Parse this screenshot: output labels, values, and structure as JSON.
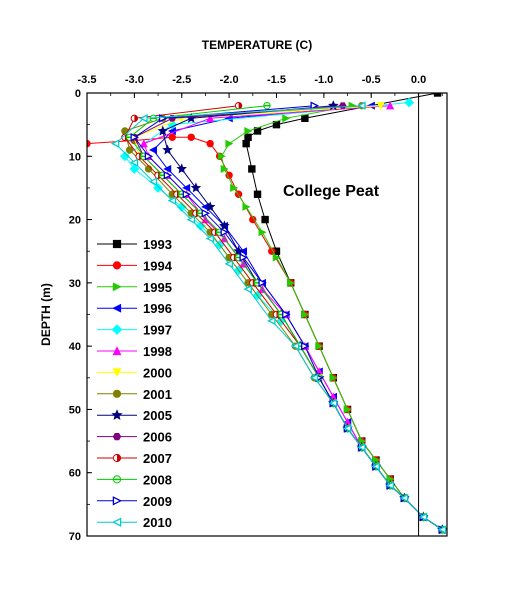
{
  "chart_data": {
    "type": "line",
    "xlabel": "TEMPERATURE (C)",
    "ylabel": "DEPTH (m)",
    "annotation": "College Peat",
    "xlim": [
      -3.5,
      0.3
    ],
    "ylim": [
      0,
      70
    ],
    "x_axis_position": "top",
    "y_axis_inverted": true,
    "grid": false,
    "legend_position": "left-center",
    "reference_line_x": 0.0,
    "x_ticks": [
      "-3.5",
      "-3.0",
      "-2.5",
      "-2.0",
      "-1.5",
      "-1.0",
      "-0.5",
      "0.0"
    ],
    "x_tick_values": [
      -3.5,
      -3.0,
      -2.5,
      -2.0,
      -1.5,
      -1.0,
      -0.5,
      0.0
    ],
    "y_ticks": [
      "0",
      "10",
      "20",
      "30",
      "40",
      "50",
      "60",
      "70"
    ],
    "y_tick_values": [
      0,
      10,
      20,
      30,
      40,
      50,
      60,
      70
    ],
    "series": [
      {
        "name": "1993",
        "color": "#000000",
        "marker": "square",
        "x": [
          0.2,
          -1.2,
          -1.5,
          -1.7,
          -1.8,
          -1.82,
          -1.76,
          -1.7,
          -1.62,
          -1.5,
          -1.35,
          -1.2,
          -1.05,
          -0.9,
          -0.75,
          -0.6,
          -0.45,
          -0.3,
          -0.15,
          0.05,
          0.25
        ],
        "y": [
          0,
          4,
          5,
          6,
          7,
          8,
          12,
          16,
          20,
          25,
          30,
          35,
          40,
          45,
          50,
          55,
          58,
          61,
          64,
          67,
          69
        ]
      },
      {
        "name": "1994",
        "color": "#ff0000",
        "marker": "circle",
        "x": [
          -3.5,
          -3.0,
          -2.6,
          -2.4,
          -2.2,
          -2.1,
          -2.0,
          -1.9,
          -1.75,
          -1.55,
          -1.35,
          -1.2,
          -1.05,
          -0.9,
          -0.75,
          -0.6,
          -0.45,
          -0.3,
          -0.15,
          0.05,
          0.25
        ],
        "y": [
          8,
          7.5,
          7,
          7,
          8,
          10,
          13,
          16,
          20,
          25,
          30,
          35,
          40,
          45,
          50,
          55,
          58,
          61,
          64,
          67,
          69
        ]
      },
      {
        "name": "1995",
        "color": "#22cc00",
        "marker": "triangle-right",
        "x": [
          -0.7,
          -1.4,
          -1.8,
          -2.0,
          -2.08,
          -2.05,
          -1.95,
          -1.82,
          -1.65,
          -1.5,
          -1.35,
          -1.2,
          -1.05,
          -0.9,
          -0.75,
          -0.6,
          -0.45,
          -0.3,
          -0.15,
          0.05,
          0.25
        ],
        "y": [
          2,
          4,
          6,
          8,
          10,
          12,
          15,
          18,
          22,
          26,
          30,
          35,
          40,
          45,
          50,
          55,
          58,
          61,
          64,
          67,
          69
        ]
      },
      {
        "name": "1996",
        "color": "#0000ff",
        "marker": "triangle-left",
        "x": [
          -0.5,
          -2.0,
          -2.6,
          -2.8,
          -2.65,
          -2.45,
          -2.25,
          -2.05,
          -1.85,
          -1.65,
          -1.4,
          -1.2,
          -1.05,
          -0.9,
          -0.75,
          -0.6,
          -0.45,
          -0.3,
          -0.15,
          0.05,
          0.25
        ],
        "y": [
          2,
          4,
          6,
          9,
          12,
          15,
          18,
          21,
          25,
          30,
          35,
          40,
          44,
          48,
          52,
          56,
          59,
          62,
          64,
          67,
          69
        ]
      },
      {
        "name": "1997",
        "color": "#00ffff",
        "marker": "diamond",
        "x": [
          -0.1,
          -2.6,
          -3.1,
          -3.0,
          -2.75,
          -2.5,
          -2.3,
          -2.1,
          -1.9,
          -1.7,
          -1.45,
          -1.25,
          -1.05,
          -0.9,
          -0.75,
          -0.6,
          -0.45,
          -0.3,
          -0.15,
          0.05,
          0.25
        ],
        "y": [
          1.5,
          5,
          10,
          12,
          15,
          18,
          21,
          24,
          28,
          32,
          36,
          40,
          45,
          49,
          53,
          56,
          59,
          62,
          64,
          67,
          69
        ]
      },
      {
        "name": "1998",
        "color": "#ff00ff",
        "marker": "triangle-up",
        "x": [
          -0.3,
          -2.2,
          -2.9,
          -2.85,
          -2.65,
          -2.45,
          -2.25,
          -2.05,
          -1.85,
          -1.65,
          -1.4,
          -1.2,
          -1.05,
          -0.9,
          -0.75,
          -0.6,
          -0.45,
          -0.3,
          -0.15,
          0.05,
          0.25
        ],
        "y": [
          2,
          4,
          8,
          10,
          13,
          16,
          20,
          23,
          27,
          31,
          35,
          40,
          44,
          48,
          52,
          56,
          59,
          62,
          64,
          67,
          69
        ]
      },
      {
        "name": "2000",
        "color": "#ffff00",
        "marker": "triangle-down",
        "x": [
          -0.4,
          -2.5,
          -3.0,
          -2.95,
          -2.75,
          -2.55,
          -2.35,
          -2.15,
          -1.95,
          -1.75,
          -1.5,
          -1.25,
          -1.05,
          -0.9,
          -0.75,
          -0.6,
          -0.45,
          -0.3,
          -0.15,
          0.05,
          0.25
        ],
        "y": [
          2,
          4,
          7,
          10,
          13,
          16,
          19,
          22,
          26,
          30,
          35,
          40,
          45,
          49,
          53,
          56,
          59,
          62,
          64,
          67,
          69
        ]
      },
      {
        "name": "2001",
        "color": "#808000",
        "marker": "circle",
        "x": [
          -0.6,
          -2.7,
          -3.1,
          -3.05,
          -2.85,
          -2.6,
          -2.4,
          -2.2,
          -2.0,
          -1.8,
          -1.55,
          -1.3,
          -1.1,
          -0.9,
          -0.75,
          -0.6,
          -0.45,
          -0.3,
          -0.15,
          0.05,
          0.25
        ],
        "y": [
          2,
          4,
          6,
          9,
          12,
          16,
          19,
          22,
          26,
          30,
          35,
          40,
          45,
          49,
          53,
          56,
          59,
          62,
          64,
          67,
          69
        ]
      },
      {
        "name": "2005",
        "color": "#000080",
        "marker": "star",
        "x": [
          -0.9,
          -2.4,
          -2.7,
          -2.65,
          -2.5,
          -2.35,
          -2.2,
          -2.05,
          -1.9,
          -1.7,
          -1.45,
          -1.25,
          -1.05,
          -0.9,
          -0.75,
          -0.6,
          -0.45,
          -0.3,
          -0.15,
          0.05,
          0.25
        ],
        "y": [
          2,
          4,
          6,
          9,
          12,
          15,
          18,
          21,
          25,
          30,
          35,
          40,
          45,
          49,
          53,
          56,
          59,
          62,
          64,
          67,
          69
        ]
      },
      {
        "name": "2006",
        "color": "#800080",
        "marker": "hexagon",
        "x": [
          -0.8,
          -2.6,
          -3.0,
          -2.9,
          -2.7,
          -2.5,
          -2.3,
          -2.1,
          -1.9,
          -1.7,
          -1.45,
          -1.25,
          -1.05,
          -0.9,
          -0.75,
          -0.6,
          -0.45,
          -0.3,
          -0.15,
          0.05,
          0.25
        ],
        "y": [
          2,
          4,
          7,
          10,
          13,
          16,
          19,
          22,
          26,
          30,
          35,
          40,
          45,
          49,
          53,
          56,
          59,
          62,
          64,
          67,
          69
        ]
      },
      {
        "name": "2007",
        "color": "#cc0000",
        "marker": "half-circle",
        "x": [
          -1.9,
          -3.0,
          -3.1,
          -2.95,
          -2.75,
          -2.55,
          -2.35,
          -2.15,
          -1.95,
          -1.75,
          -1.5,
          -1.25,
          -1.05,
          -0.9,
          -0.75,
          -0.6,
          -0.45,
          -0.3,
          -0.15,
          0.05,
          0.25
        ],
        "y": [
          2,
          4,
          7,
          10,
          13,
          16,
          19,
          22,
          26,
          30,
          35,
          40,
          45,
          49,
          53,
          56,
          59,
          62,
          64,
          67,
          69
        ]
      },
      {
        "name": "2008",
        "color": "#00cc00",
        "marker": "circle-line",
        "x": [
          -1.6,
          -2.8,
          -3.05,
          -2.9,
          -2.7,
          -2.5,
          -2.3,
          -2.1,
          -1.9,
          -1.7,
          -1.45,
          -1.25,
          -1.05,
          -0.9,
          -0.75,
          -0.6,
          -0.45,
          -0.3,
          -0.15,
          0.05,
          0.25
        ],
        "y": [
          2,
          4,
          7,
          10,
          13,
          16,
          19,
          22,
          26,
          30,
          35,
          40,
          45,
          49,
          53,
          56,
          59,
          62,
          64,
          67,
          69
        ]
      },
      {
        "name": "2009",
        "color": "#0000cc",
        "marker": "triangle-right-open",
        "x": [
          -1.1,
          -2.7,
          -3.0,
          -2.85,
          -2.65,
          -2.45,
          -2.25,
          -2.05,
          -1.85,
          -1.65,
          -1.4,
          -1.2,
          -1.05,
          -0.9,
          -0.75,
          -0.6,
          -0.45,
          -0.3,
          -0.15,
          0.05,
          0.25
        ],
        "y": [
          2,
          4,
          7,
          10,
          13,
          16,
          19,
          22,
          26,
          30,
          35,
          40,
          45,
          49,
          53,
          56,
          59,
          62,
          64,
          67,
          69
        ]
      },
      {
        "name": "2010",
        "color": "#00cccc",
        "marker": "triangle-left-open",
        "x": [
          -0.6,
          -2.9,
          -3.2,
          -3.0,
          -2.8,
          -2.6,
          -2.4,
          -2.2,
          -2.0,
          -1.8,
          -1.55,
          -1.3,
          -1.1,
          -0.9,
          -0.75,
          -0.6,
          -0.45,
          -0.3,
          -0.15,
          0.05,
          0.25
        ],
        "y": [
          2,
          4,
          8,
          11,
          14,
          17,
          20,
          23,
          27,
          31,
          36,
          40,
          45,
          49,
          53,
          56,
          59,
          62,
          64,
          67,
          69
        ]
      }
    ]
  }
}
